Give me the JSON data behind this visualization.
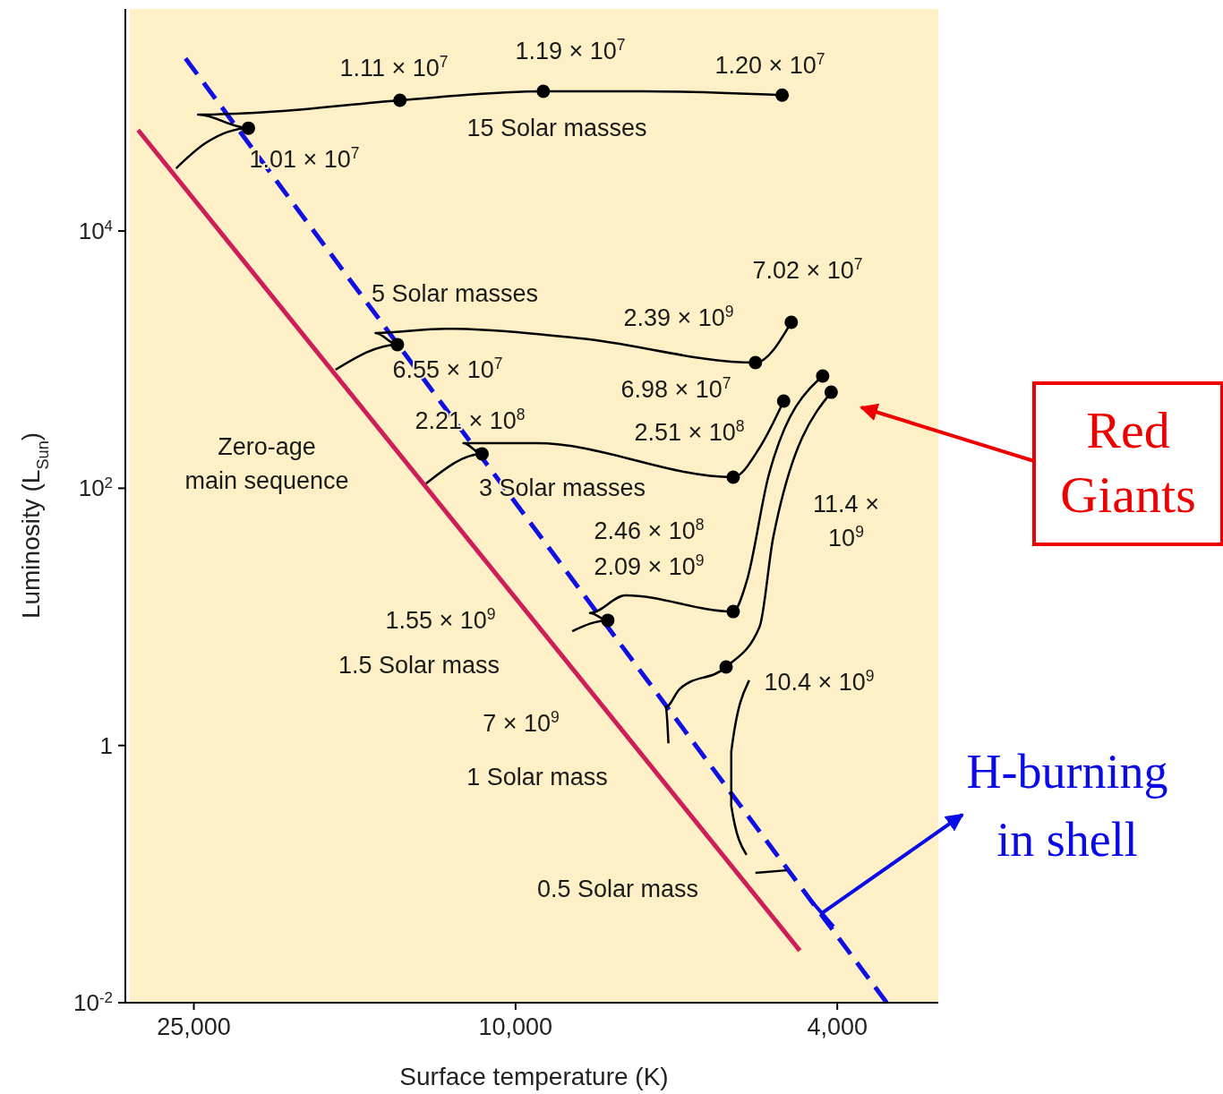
{
  "chart_data": {
    "type": "line",
    "xlabel": "Surface temperature (K)",
    "ylabel": "Luminosity (L$_{Sun}$)",
    "log": "xy",
    "xlim": [
      30000,
      3000
    ],
    "ylim": [
      0.01,
      500000
    ],
    "xticks": [
      {
        "value": 25000,
        "label": "25,000"
      },
      {
        "value": 10000,
        "label": "10,000"
      },
      {
        "value": 4000,
        "label": "4,000"
      }
    ],
    "yticks": [
      {
        "value": 0.01,
        "label": "10$^{-2}$"
      },
      1,
      {
        "value": 100,
        "label": "10$^{2}$"
      },
      {
        "value": 10000,
        "label": "10$^{4}$"
      }
    ],
    "series": [
      {
        "color": "#cc1f5a",
        "marker": "none",
        "x": [
          29300,
          4450
        ],
        "values": [
          61000,
          0.0254
        ]
      },
      {
        "color": "#1010e0",
        "marker": "none",
        "line_style": "dashed",
        "x": [
          25600,
          3475
        ],
        "values": [
          220000,
          0.01
        ]
      },
      {
        "color": "#000000",
        "marker": "none",
        "x": [
          26300,
          24200,
          21400,
          24700,
          20200,
          13900,
          9240,
          6950,
          4680
        ],
        "values": [
          30700,
          48100,
          63100,
          80300,
          84300,
          104000,
          122000,
          122000,
          114000
        ]
      },
      {
        "color": "#000000",
        "marker": "none",
        "x": [
          16700,
          14000,
          14900,
          12200,
          8300,
          5050,
          4560
        ],
        "values": [
          834,
          1310,
          1610,
          1740,
          1460,
          948,
          1950
        ]
      },
      {
        "color": "#000000",
        "marker": "none",
        "x": [
          12900,
          11000,
          11600,
          9430,
          5380,
          4990,
          4660
        ],
        "values": [
          109,
          185,
          224,
          224,
          122,
          207,
          476
        ]
      },
      {
        "color": "#000000",
        "marker": "none",
        "x": [
          8510,
          7690,
          8090,
          7310,
          5380,
          5180,
          4860,
          4170
        ],
        "values": [
          7.74,
          9.4,
          10.7,
          14.7,
          11,
          18.7,
          128,
          746
        ]
      },
      {
        "color": "#000000",
        "marker": "none",
        "x": [
          6470,
          6520,
          6270,
          5490,
          4990,
          4800,
          4070
        ],
        "values": [
          1.04,
          1.99,
          2.74,
          4.08,
          8.4,
          41.7,
          558
        ]
      },
      {
        "color": "#000000",
        "marker": "none",
        "x": [
          5180,
          5410,
          5410,
          5140
        ],
        "values": [
          0.141,
          0.34,
          0.891,
          3.21
        ]
      },
      {
        "color": "#000000",
        "marker": "none",
        "x": [
          5050,
          4620
        ],
        "values": [
          0.102,
          0.107
        ]
      },
      {
        "type": "scatter",
        "color": "#000000",
        "marker": "circle",
        "x": [
          21400,
          13900,
          9240,
          4680,
          14000,
          5050,
          4560,
          11000,
          5380,
          4660,
          7690,
          5380,
          4170,
          5490,
          4070
        ],
        "values": [
          63100,
          104000,
          122000,
          114000,
          1310,
          948,
          1950,
          185,
          122,
          476,
          9.4,
          11,
          746,
          4.08,
          558
        ]
      }
    ],
    "annotations": [
      "1.01 × 10$^{7}$",
      "1.11 × 10$^{7}$",
      "1.19 × 10$^{7}$",
      "1.20 × 10$^{7}$",
      "15 Solar masses",
      "7.02 × 10$^{7}$",
      "5 Solar masses",
      "2.39 × 10$^{9}$",
      "6.55 × 10$^{7}$",
      "6.98 × 10$^{7}$",
      "2.21 × 10$^{8}$",
      "2.51 × 10$^{8}$",
      "Zero-age\nmain sequence",
      "3 Solar masses",
      "2.46 × 10$^{8}$",
      "2.09 × 10$^{9}$",
      "11.4 ×\n10$^{9}$",
      "1.55 × 10$^{9}$",
      "1.5 Solar mass",
      "10.4 × 10$^{9}$",
      "7 × 10$^{9}$",
      "1 Solar mass",
      "0.5 Solar mass",
      "Red\nGiants",
      "H-burning\nin shell"
    ]
  }
}
